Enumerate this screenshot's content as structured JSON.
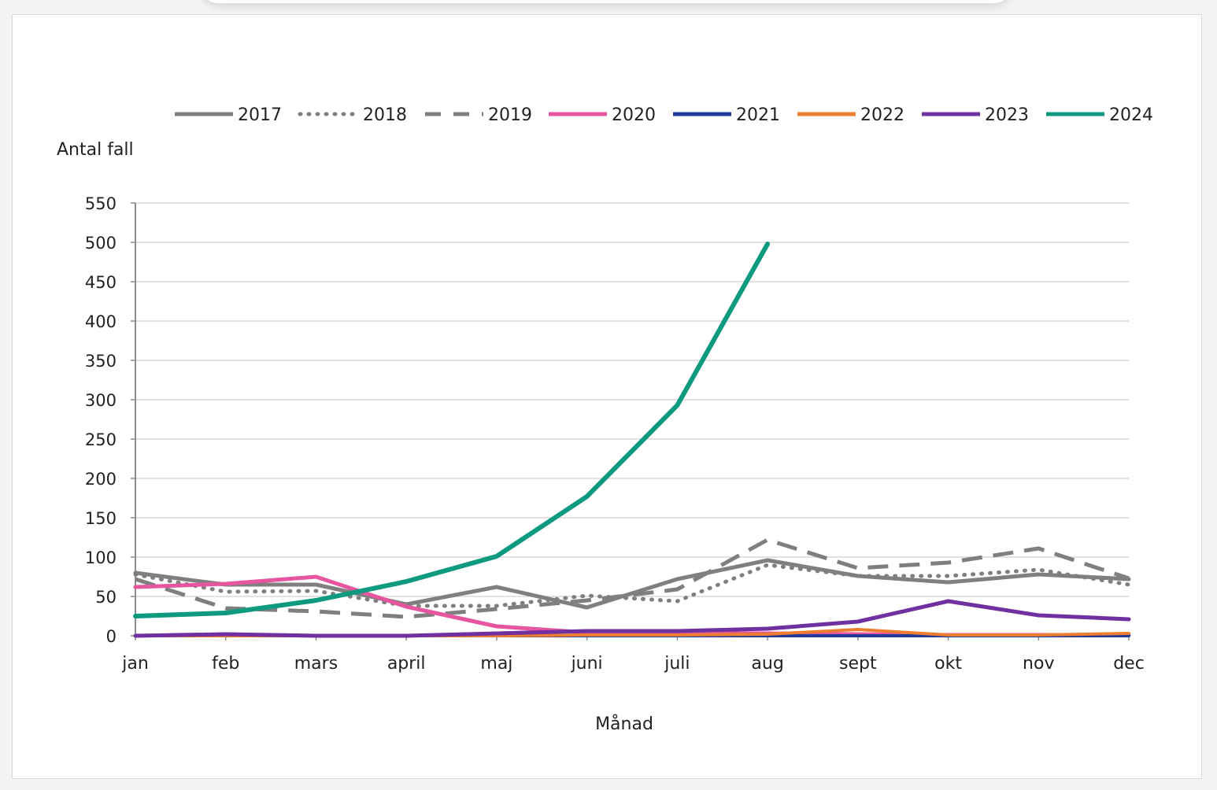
{
  "chart_data": {
    "type": "line",
    "ylabel": "Antal fall",
    "xlabel": "Månad",
    "ylim": [
      0,
      550
    ],
    "yticks": [
      0,
      50,
      100,
      150,
      200,
      250,
      300,
      350,
      400,
      450,
      500,
      550
    ],
    "grid": true,
    "legend_position": "top",
    "categories": [
      "jan",
      "feb",
      "mars",
      "april",
      "maj",
      "juni",
      "juli",
      "aug",
      "sept",
      "okt",
      "nov",
      "dec"
    ],
    "series": [
      {
        "name": "2017",
        "color": "#7f7f7f",
        "style": "solid",
        "width": 5,
        "values": [
          80,
          65,
          65,
          40,
          62,
          36,
          72,
          96,
          76,
          68,
          78,
          72
        ]
      },
      {
        "name": "2018",
        "color": "#7f7f7f",
        "style": "dotted",
        "width": 5,
        "values": [
          78,
          56,
          57,
          38,
          38,
          51,
          44,
          90,
          76,
          76,
          84,
          65
        ]
      },
      {
        "name": "2019",
        "color": "#7f7f7f",
        "style": "dashed",
        "width": 5,
        "values": [
          72,
          35,
          31,
          24,
          34,
          45,
          59,
          122,
          86,
          93,
          111,
          73
        ]
      },
      {
        "name": "2020",
        "color": "#e8559f",
        "style": "solid",
        "width": 5,
        "values": [
          62,
          66,
          75,
          37,
          12,
          4,
          3,
          3,
          2,
          1,
          1,
          1
        ]
      },
      {
        "name": "2021",
        "color": "#1f3b9a",
        "style": "solid",
        "width": 4,
        "values": [
          0,
          0,
          0,
          0,
          0,
          0,
          0,
          0,
          0,
          0,
          0,
          0
        ]
      },
      {
        "name": "2022",
        "color": "#ed7d31",
        "style": "solid",
        "width": 4,
        "values": [
          0,
          0,
          0,
          0,
          0,
          1,
          1,
          2,
          8,
          1,
          1,
          3
        ]
      },
      {
        "name": "2023",
        "color": "#7030a0",
        "style": "solid",
        "width": 5,
        "values": [
          0,
          2,
          0,
          0,
          3,
          6,
          6,
          9,
          18,
          44,
          26,
          21
        ]
      },
      {
        "name": "2024",
        "color": "#0e9a7f",
        "style": "solid",
        "width": 6,
        "values": [
          25,
          29,
          45,
          69,
          101,
          177,
          293,
          498,
          null,
          null,
          null,
          null
        ]
      }
    ]
  }
}
